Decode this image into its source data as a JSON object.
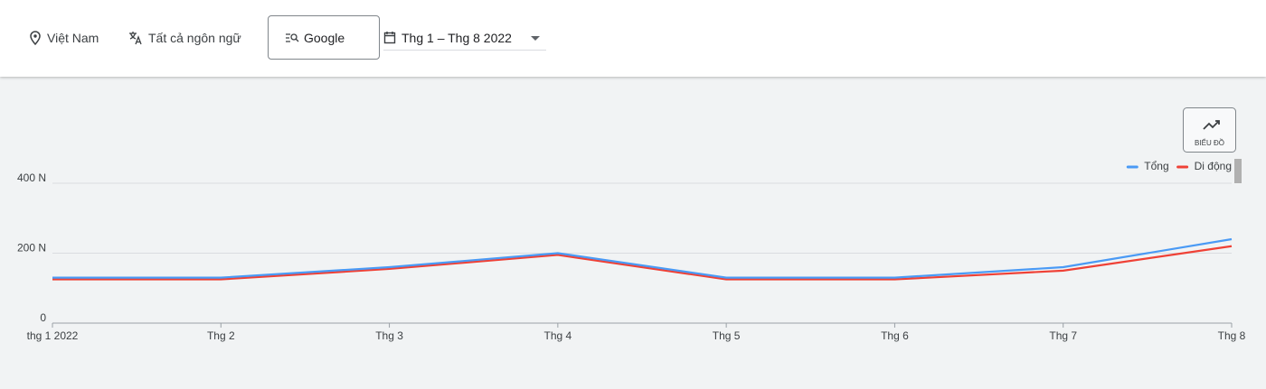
{
  "filters": {
    "location": "Việt Nam",
    "language": "Tất cả ngôn ngữ",
    "source": "Google",
    "date_range": "Thg 1 – Thg 8 2022"
  },
  "chart_button": "BIỂU ĐỒ",
  "chart_data": {
    "type": "line",
    "categories": [
      "thg 1 2022",
      "Thg 2",
      "Thg 3",
      "Thg 4",
      "Thg 5",
      "Thg 6",
      "Thg 7",
      "Thg 8"
    ],
    "series": [
      {
        "name": "Tổng",
        "color": "#4a9af5",
        "values": [
          130,
          130,
          160,
          200,
          130,
          130,
          160,
          240
        ]
      },
      {
        "name": "Di động",
        "color": "#ef4136",
        "values": [
          125,
          125,
          155,
          195,
          125,
          125,
          150,
          220
        ]
      }
    ],
    "ylim": [
      0,
      600
    ],
    "yticks": [
      {
        "value": 0,
        "label": "0"
      },
      {
        "value": 200,
        "label": "200 N"
      },
      {
        "value": 400,
        "label": "400 N"
      }
    ],
    "grid": true
  }
}
